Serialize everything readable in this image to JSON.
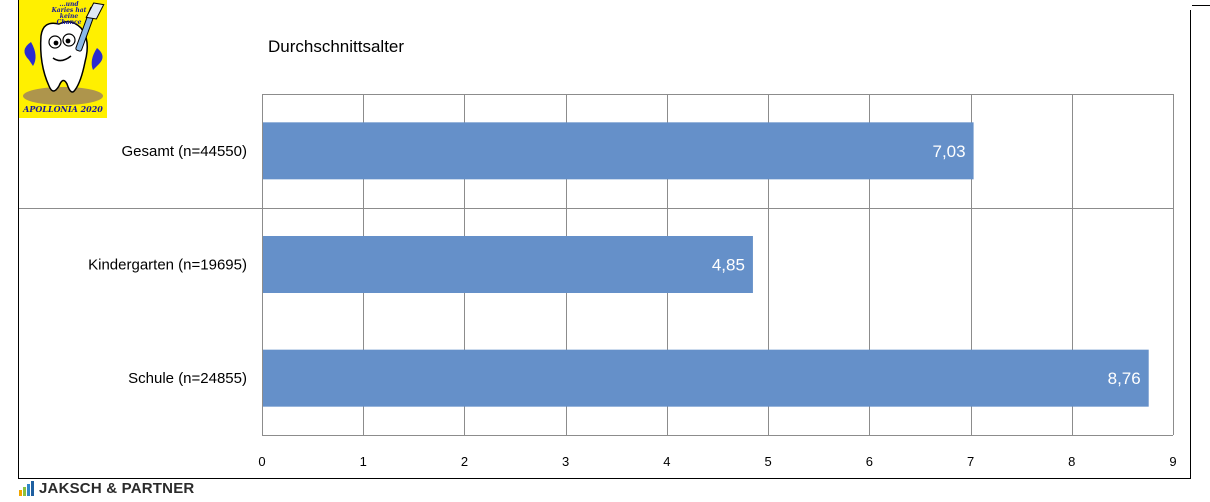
{
  "logo": {
    "tagline": "...und Karies hat keine Chance",
    "brand": "APOLLONIA 2020"
  },
  "footer": {
    "brand": "JAKSCH & PARTNER",
    "bar_colors": [
      "#f0a500",
      "#8ac13f",
      "#2f86c8",
      "#1e5fa0"
    ]
  },
  "chart_data": {
    "type": "bar",
    "orientation": "horizontal",
    "title": "Durchschnittsalter",
    "categories": [
      "Gesamt (n=44550)",
      "Kindergarten (n=19695)",
      "Schule (n=24855)"
    ],
    "values": [
      7.03,
      4.85,
      8.76
    ],
    "data_labels": [
      "7,03",
      "4,85",
      "8,76"
    ],
    "xlim": [
      0,
      9
    ],
    "x_ticks": [
      "0",
      "1",
      "2",
      "3",
      "4",
      "5",
      "6",
      "7",
      "8",
      "9"
    ],
    "grid": true,
    "legend": "none",
    "bar_color": "#6590c9",
    "xlabel": "",
    "ylabel": ""
  }
}
